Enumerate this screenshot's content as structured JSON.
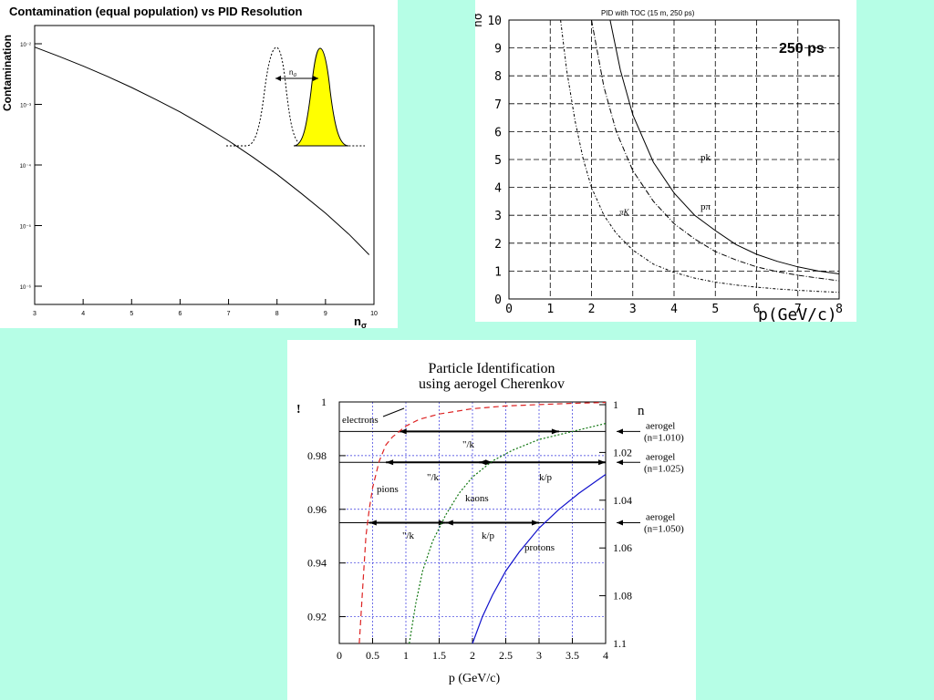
{
  "chart_data": [
    {
      "type": "line",
      "title": "Contamination (equal population) vs PID Resolution",
      "xlabel": "n",
      "xlabel_sub": "σ",
      "ylabel": "Contamination",
      "log_y": true,
      "xlim": [
        3,
        10
      ],
      "ylim": [
        1e-06,
        0.01
      ],
      "x_ticks": [
        "3",
        "4",
        "5",
        "6",
        "7",
        "8",
        "9",
        "10"
      ],
      "y_ticks": [
        "10⁻²",
        "10⁻³",
        "10⁻⁴",
        "10⁻⁵",
        "10⁻⁶"
      ],
      "y_tick_values": [
        0.01,
        0.001,
        0.0001,
        1e-05,
        1e-06
      ],
      "series": [
        {
          "x": [
            3,
            3.5,
            4,
            4.5,
            5,
            5.5,
            6,
            6.5,
            7,
            7.5,
            8,
            8.5,
            9,
            9.5,
            9.9
          ],
          "y": [
            0.0088,
            0.0062,
            0.0043,
            0.0029,
            0.0019,
            0.0012,
            0.00075,
            0.00044,
            0.00025,
            0.000135,
            7e-05,
            3.4e-05,
            1.6e-05,
            7e-06,
            3.3e-06
          ]
        }
      ],
      "inset": {
        "label": "n",
        "label_sub": "σ",
        "fill_color": "#ffff00"
      }
    },
    {
      "type": "line",
      "title": "PID with TOC (15 m, 250 ps)",
      "xlabel": "p(GeV/c)",
      "ylabel": "nσ",
      "annotation": "250 ps",
      "xlim": [
        0,
        8
      ],
      "ylim": [
        0,
        10
      ],
      "x_ticks": [
        "0",
        "1",
        "2",
        "3",
        "4",
        "5",
        "6",
        "7",
        "8"
      ],
      "y_ticks": [
        "0",
        "1",
        "2",
        "3",
        "4",
        "5",
        "6",
        "7",
        "8",
        "9",
        "10"
      ],
      "grid": true,
      "series": [
        {
          "name": "pk",
          "style": "solid",
          "x": [
            2.45,
            2.7,
            3.0,
            3.5,
            4.0,
            4.5,
            5.0,
            5.5,
            6.0,
            6.5,
            7.0,
            7.5,
            8.0
          ],
          "y": [
            10,
            8.2,
            6.6,
            4.9,
            3.8,
            3.0,
            2.45,
            1.95,
            1.6,
            1.35,
            1.15,
            1.0,
            0.9
          ]
        },
        {
          "name": "pπ",
          "style": "dashdot",
          "x": [
            2.0,
            2.3,
            2.6,
            3.0,
            3.5,
            4.0,
            4.5,
            5.0,
            5.5,
            6.0,
            6.5,
            7.0,
            7.5,
            8.0
          ],
          "y": [
            10,
            7.6,
            6.0,
            4.6,
            3.5,
            2.7,
            2.15,
            1.7,
            1.4,
            1.15,
            0.98,
            0.85,
            0.75,
            0.65
          ]
        },
        {
          "name": "πK",
          "style": "dotdash",
          "x": [
            1.25,
            1.4,
            1.6,
            1.8,
            2.0,
            2.3,
            2.6,
            3.0,
            3.5,
            4.0,
            4.5,
            5.0,
            5.5,
            6.0,
            6.5,
            7.0,
            7.5,
            8.0
          ],
          "y": [
            10,
            8.2,
            6.4,
            5.0,
            4.0,
            3.0,
            2.35,
            1.75,
            1.25,
            0.95,
            0.75,
            0.6,
            0.5,
            0.42,
            0.36,
            0.31,
            0.27,
            0.24
          ]
        }
      ]
    },
    {
      "type": "line",
      "title": "Particle Identification",
      "subtitle": "using aerogel Cherenkov",
      "xlabel": "p (GeV/c)",
      "ylabel_left": "!",
      "ylabel_right": "n",
      "xlim": [
        0,
        4
      ],
      "ylim": [
        0.91,
        1.0
      ],
      "x_ticks": [
        "0",
        "0.5",
        "1",
        "1.5",
        "2",
        "2.5",
        "3",
        "3.5",
        "4"
      ],
      "y_ticks_left": [
        "1",
        "0.98",
        "0.96",
        "0.94",
        "0.92"
      ],
      "y_ticks_right": [
        "1",
        "1.02",
        "1.04",
        "1.06",
        "1.08",
        "1.1"
      ],
      "grid": true,
      "series": [
        {
          "name": "electrons",
          "style": "dashed",
          "color": "#dd2222",
          "x": [
            0.3,
            0.35,
            0.4,
            0.45,
            0.5,
            0.6,
            0.7,
            0.8,
            1.0,
            1.2,
            1.5,
            2.0,
            2.5,
            3.0,
            3.5,
            4.0
          ],
          "y": [
            0.91,
            0.93,
            0.95,
            0.96,
            0.968,
            0.978,
            0.984,
            0.987,
            0.991,
            0.9935,
            0.9955,
            0.9975,
            0.9985,
            0.999,
            0.9995,
            0.9998
          ]
        },
        {
          "name": "kaons",
          "style": "dotted",
          "color": "#117711",
          "x": [
            1.05,
            1.15,
            1.25,
            1.4,
            1.6,
            1.8,
            2.0,
            2.3,
            2.6,
            3.0,
            3.5,
            4.0
          ],
          "y": [
            0.91,
            0.925,
            0.937,
            0.948,
            0.958,
            0.966,
            0.972,
            0.978,
            0.982,
            0.986,
            0.989,
            0.992
          ]
        },
        {
          "name": "protons",
          "style": "solid",
          "color": "#1111cc",
          "x": [
            2.0,
            2.15,
            2.3,
            2.5,
            2.7,
            3.0,
            3.3,
            3.6,
            4.0
          ],
          "y": [
            0.91,
            0.92,
            0.928,
            0.937,
            0.944,
            0.953,
            0.96,
            0.966,
            0.973
          ]
        }
      ],
      "threshold_lines": [
        {
          "y": 0.989,
          "label_line1": "aerogel",
          "label_line2": "(n=1.010)"
        },
        {
          "y": 0.9775,
          "label_line1": "aerogel",
          "label_line2": "(n=1.025)"
        },
        {
          "y": 0.955,
          "label_line1": "aerogel",
          "label_line2": "(n=1.050)"
        }
      ],
      "annotations": [
        "electrons",
        "\"/k",
        "\"/k",
        "k/p",
        "\"/k",
        "k/p",
        "pions",
        "kaons",
        "protons"
      ]
    }
  ]
}
